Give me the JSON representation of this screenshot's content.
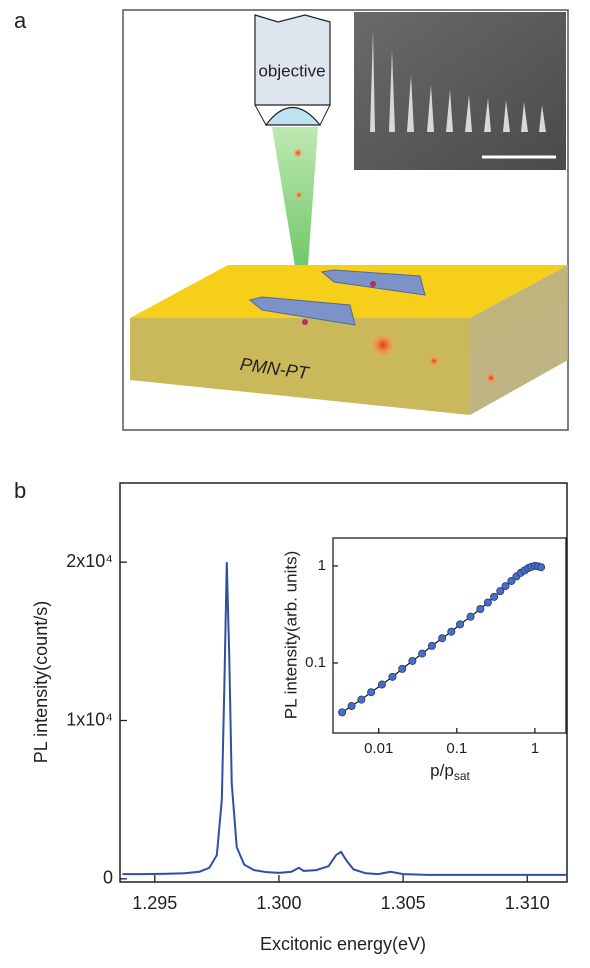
{
  "panel_a": {
    "label": "a",
    "objective": "objective",
    "substrate": "PMN-PT"
  },
  "panel_b": {
    "label": "b"
  },
  "chart_data": [
    {
      "type": "line",
      "xlabel": "Excitonic energy(eV)",
      "ylabel": "PL intensity(count/s)",
      "x": [
        1.2937,
        1.2945,
        1.2955,
        1.2962,
        1.2968,
        1.2972,
        1.2975,
        1.2977,
        1.2978,
        1.2979,
        1.298,
        1.2981,
        1.2983,
        1.2986,
        1.299,
        1.2995,
        1.3,
        1.3005,
        1.3008,
        1.301,
        1.3015,
        1.302,
        1.3023,
        1.3025,
        1.3027,
        1.303,
        1.3035,
        1.304,
        1.3045,
        1.305,
        1.306,
        1.307,
        1.308,
        1.309,
        1.31,
        1.3116
      ],
      "series": [
        {
          "color": "#2e4fa3",
          "values": [
            300,
            300,
            320,
            350,
            450,
            700,
            1500,
            5000,
            12000,
            20000,
            14000,
            6000,
            2000,
            900,
            550,
            420,
            380,
            450,
            700,
            500,
            550,
            800,
            1500,
            1700,
            1200,
            600,
            350,
            300,
            450,
            300,
            250,
            250,
            250,
            250,
            250,
            250
          ]
        }
      ],
      "xlim": [
        1.2936,
        1.3116
      ],
      "xticks": [
        1.295,
        {
          "value": 1.3,
          "label": "1.300"
        },
        1.305,
        {
          "value": 1.31,
          "label": "1.310"
        }
      ],
      "ylim": [
        -200,
        25000
      ],
      "yticks": [
        0,
        {
          "value": 10000,
          "label": "1x10⁴"
        },
        {
          "value": 20000,
          "label": "2x10⁴"
        }
      ]
    },
    {
      "type": "scatter",
      "xlabel": {
        "text": "p/p",
        "subscript": "sat"
      },
      "ylabel": "PL intensity(arb. units)",
      "log_x": true,
      "log_y": true,
      "x": [
        0.0034,
        0.0045,
        0.006,
        0.008,
        0.011,
        0.015,
        0.02,
        0.027,
        0.036,
        0.048,
        0.065,
        0.085,
        0.11,
        0.15,
        0.2,
        0.25,
        0.3,
        0.36,
        0.42,
        0.5,
        0.58,
        0.66,
        0.74,
        0.82,
        0.9,
        1.0,
        1.1,
        1.2
      ],
      "series": [
        {
          "color": "#4a6fc0",
          "values": [
            0.031,
            0.036,
            0.042,
            0.05,
            0.06,
            0.072,
            0.087,
            0.105,
            0.125,
            0.15,
            0.18,
            0.21,
            0.25,
            0.3,
            0.36,
            0.42,
            0.48,
            0.55,
            0.62,
            0.7,
            0.78,
            0.85,
            0.9,
            0.95,
            0.98,
            1.0,
            0.99,
            0.97
          ]
        }
      ],
      "xlim": [
        0.0026,
        2.5
      ],
      "xticks": [
        0.01,
        0.1,
        1
      ],
      "ylim": [
        0.019,
        1.94
      ],
      "yticks": [
        0.1,
        1
      ]
    }
  ]
}
